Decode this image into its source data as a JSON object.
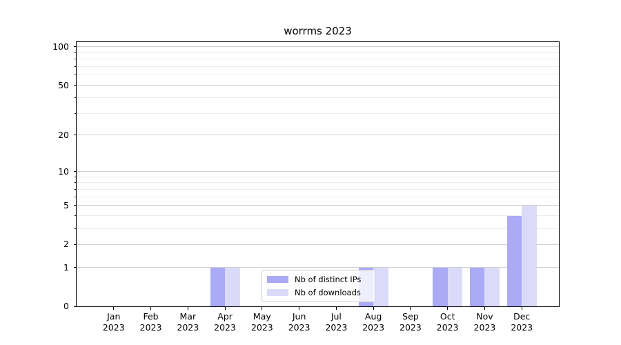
{
  "title": "worrms 2023",
  "chart_data": {
    "type": "bar",
    "title": "worrms 2023",
    "categories": [
      "Jan",
      "Feb",
      "Mar",
      "Apr",
      "May",
      "Jun",
      "Jul",
      "Aug",
      "Sep",
      "Oct",
      "Nov",
      "Dec"
    ],
    "x_year_suffix": "2023",
    "series": [
      {
        "name": "Nb of distinct IPs",
        "color": "#aaaaf6",
        "values": [
          0,
          0,
          0,
          1,
          0,
          0,
          0,
          1,
          0,
          1,
          1,
          4
        ]
      },
      {
        "name": "Nb of downloads",
        "color": "#dbdbf9",
        "values": [
          0,
          0,
          0,
          1,
          0,
          0,
          0,
          1,
          0,
          1,
          1,
          5
        ]
      }
    ],
    "yscale": "log1p",
    "ylim": [
      0,
      110
    ],
    "yticks": [
      0,
      1,
      2,
      5,
      10,
      20,
      50,
      100
    ],
    "yminorticks": [
      3,
      4,
      6,
      7,
      8,
      9,
      30,
      40,
      60,
      70,
      80,
      90
    ],
    "grid": "on",
    "legend_position": "lower center"
  },
  "colors": {
    "grid_major": "#cfcfcf",
    "grid_minor": "#ececec",
    "spine": "#000000",
    "background": "#ffffff",
    "legend_border": "#cccccc"
  }
}
